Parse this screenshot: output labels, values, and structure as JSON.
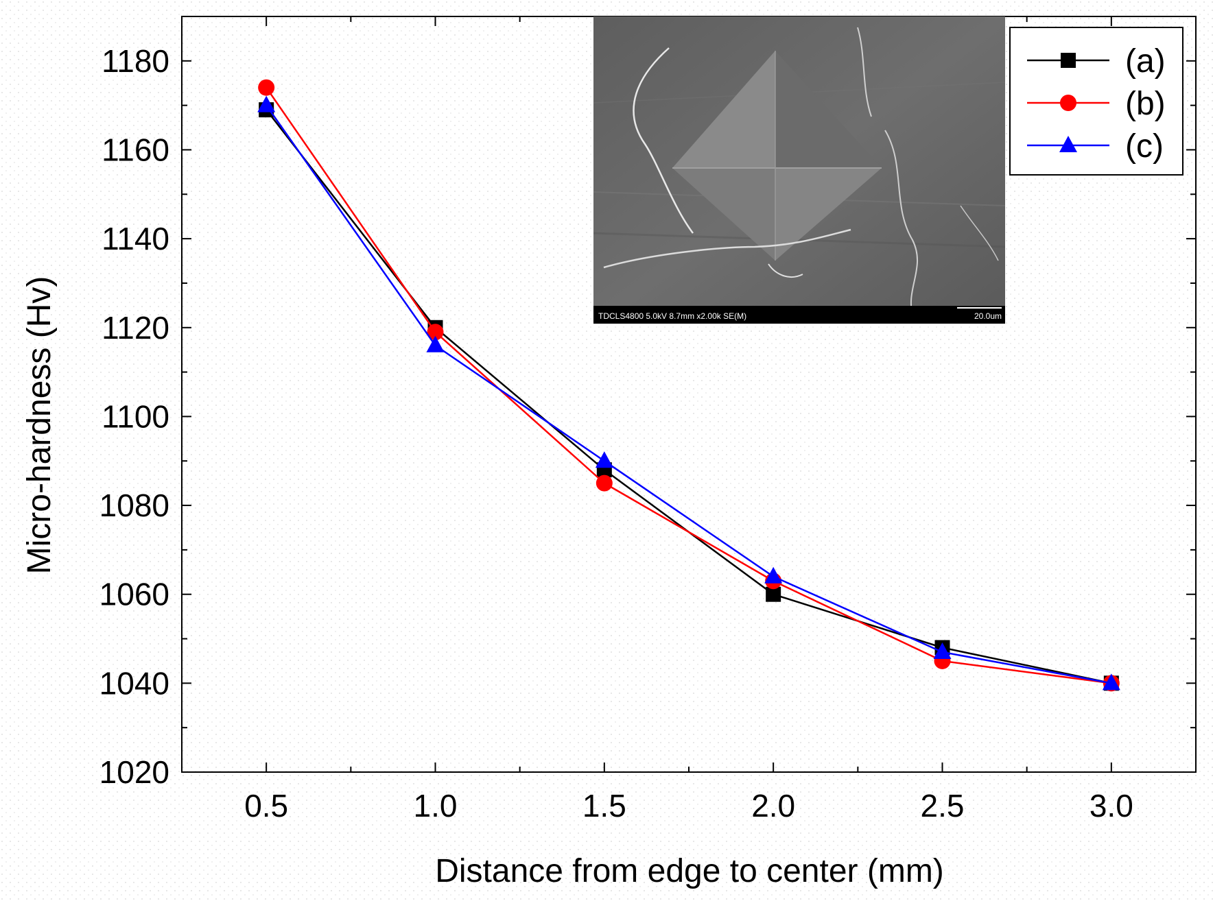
{
  "chart_data": {
    "type": "line",
    "title": "",
    "xlabel": "Distance from edge to center (mm)",
    "ylabel": "Micro-hardness (Hv)",
    "x": [
      0.5,
      1.0,
      1.5,
      2.0,
      2.5,
      3.0
    ],
    "xtick_labels": [
      "0.5",
      "1.0",
      "1.5",
      "2.0",
      "2.5",
      "3.0"
    ],
    "yticks": [
      1020,
      1040,
      1060,
      1080,
      1100,
      1120,
      1140,
      1160,
      1180
    ],
    "ytick_labels": [
      "1020",
      "1040",
      "1060",
      "1080",
      "1100",
      "1120",
      "1140",
      "1160",
      "1180"
    ],
    "xlim": [
      0.25,
      3.25
    ],
    "ylim": [
      1020,
      1190
    ],
    "legend_position": "top-right",
    "series": [
      {
        "name": "(a)",
        "color": "#000000",
        "marker": "square",
        "values": [
          1169,
          1120,
          1088,
          1060,
          1048,
          1040
        ]
      },
      {
        "name": "(b)",
        "color": "#ff0000",
        "marker": "circle",
        "values": [
          1174,
          1119,
          1085,
          1063,
          1045,
          1040
        ]
      },
      {
        "name": "(c)",
        "color": "#0000ff",
        "marker": "triangle",
        "values": [
          1170,
          1116,
          1090,
          1064,
          1047,
          1040
        ]
      }
    ],
    "inset": {
      "description": "SEM micrograph of Vickers indentation",
      "caption_left": "TDCLS4800 5.0kV 8.7mm x2.00k SE(M)",
      "caption_right": "20.0um"
    }
  }
}
